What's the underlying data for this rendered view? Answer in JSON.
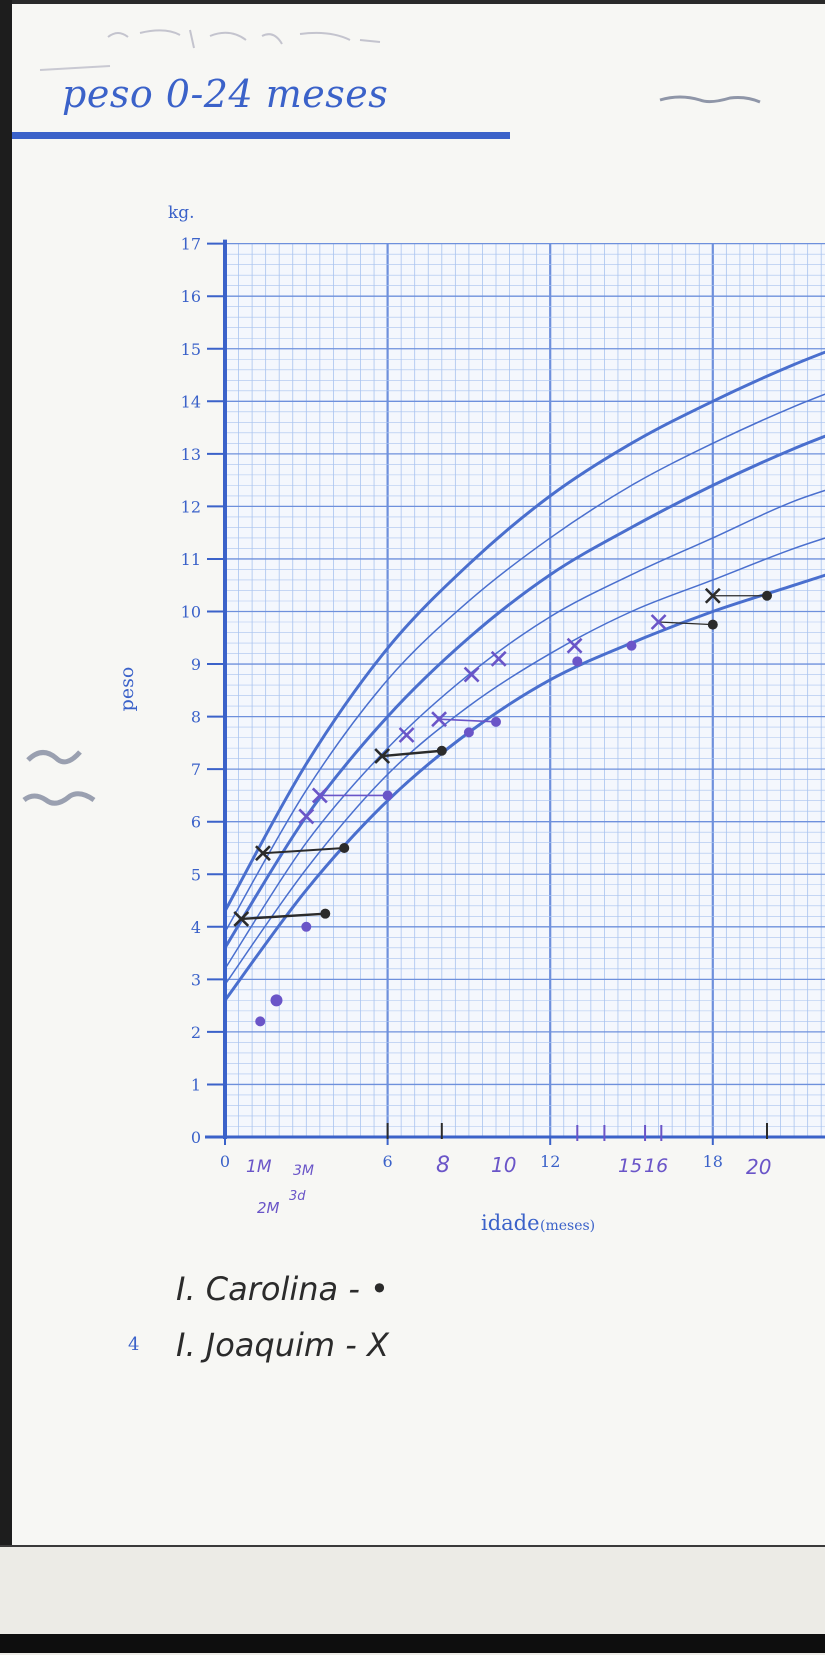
{
  "page": {
    "title": "peso 0-24 meses",
    "page_number": "4"
  },
  "handwriting": {
    "month_marks": [
      "1M",
      "3M",
      "2M",
      "3d",
      "8",
      "10",
      "15",
      "16",
      "20"
    ],
    "legend_1": "I. Carolina - •",
    "legend_2": "I. Joaquim - X"
  },
  "colors": {
    "grid": "#a9c3ef",
    "grid_major": "#6e90dc",
    "axis": "#3b62c9",
    "curve": "#4a6fce",
    "ink_dark": "#2b2b2b",
    "ink_purple": "#6a55c8"
  },
  "chart_data": {
    "type": "line",
    "title": "peso 0-24 meses",
    "xlabel": "idade",
    "xlabel_unit": "(meses)",
    "ylabel": "peso",
    "yunit": "kg.",
    "xlim": [
      0,
      24
    ],
    "ylim": [
      0,
      17
    ],
    "x_ticks": [
      0,
      6,
      12,
      18
    ],
    "y_ticks": [
      0,
      1,
      2,
      3,
      4,
      5,
      6,
      7,
      8,
      9,
      10,
      11,
      12,
      13,
      14,
      15,
      16,
      17
    ],
    "grid": true,
    "reference_curves": [
      {
        "x": [
          0,
          3,
          6,
          9,
          12,
          15,
          18,
          21,
          24
        ],
        "values": [
          2.6,
          4.7,
          6.4,
          7.7,
          8.7,
          9.4,
          10.0,
          10.5,
          11.0
        ]
      },
      {
        "x": [
          0,
          3,
          6,
          9,
          12,
          15,
          18,
          21,
          24
        ],
        "values": [
          2.9,
          5.1,
          6.9,
          8.2,
          9.2,
          10.0,
          10.6,
          11.2,
          11.7
        ]
      },
      {
        "x": [
          0,
          3,
          6,
          9,
          12,
          15,
          18,
          21,
          24
        ],
        "values": [
          3.2,
          5.6,
          7.4,
          8.8,
          9.9,
          10.7,
          11.4,
          12.1,
          12.6
        ]
      },
      {
        "x": [
          0,
          3,
          6,
          9,
          12,
          15,
          18,
          21,
          24
        ],
        "values": [
          3.6,
          6.1,
          8.0,
          9.5,
          10.7,
          11.6,
          12.4,
          13.1,
          13.7
        ]
      },
      {
        "x": [
          0,
          3,
          6,
          9,
          12,
          15,
          18,
          21,
          24
        ],
        "values": [
          3.9,
          6.6,
          8.7,
          10.2,
          11.4,
          12.4,
          13.2,
          13.9,
          14.5
        ]
      },
      {
        "x": [
          0,
          3,
          6,
          9,
          12,
          15,
          18,
          21,
          24
        ],
        "values": [
          4.3,
          7.1,
          9.3,
          10.9,
          12.2,
          13.2,
          14.0,
          14.7,
          15.3
        ]
      }
    ],
    "series": [
      {
        "marker": "dot",
        "points": [
          {
            "x": 1.3,
            "y": 2.2
          },
          {
            "x": 1.9,
            "y": 2.6
          },
          {
            "x": 3.0,
            "y": 4.0
          },
          {
            "x": 3.7,
            "y": 4.25
          },
          {
            "x": 4.4,
            "y": 5.5
          },
          {
            "x": 6.0,
            "y": 6.5
          },
          {
            "x": 8.0,
            "y": 7.35
          },
          {
            "x": 9.0,
            "y": 7.7
          },
          {
            "x": 10.0,
            "y": 7.9
          },
          {
            "x": 13.0,
            "y": 9.05
          },
          {
            "x": 15.0,
            "y": 9.35
          },
          {
            "x": 18.0,
            "y": 9.75
          },
          {
            "x": 20.0,
            "y": 10.3
          }
        ]
      },
      {
        "marker": "x",
        "points": [
          {
            "x": 0.6,
            "y": 4.15
          },
          {
            "x": 1.4,
            "y": 5.4
          },
          {
            "x": 3.0,
            "y": 6.1
          },
          {
            "x": 3.5,
            "y": 6.5
          },
          {
            "x": 5.8,
            "y": 7.25
          },
          {
            "x": 6.7,
            "y": 7.65
          },
          {
            "x": 7.9,
            "y": 7.95
          },
          {
            "x": 9.1,
            "y": 8.8
          },
          {
            "x": 10.1,
            "y": 9.1
          },
          {
            "x": 12.9,
            "y": 9.35
          },
          {
            "x": 16.0,
            "y": 9.8
          },
          {
            "x": 18.0,
            "y": 10.3
          }
        ]
      }
    ]
  }
}
